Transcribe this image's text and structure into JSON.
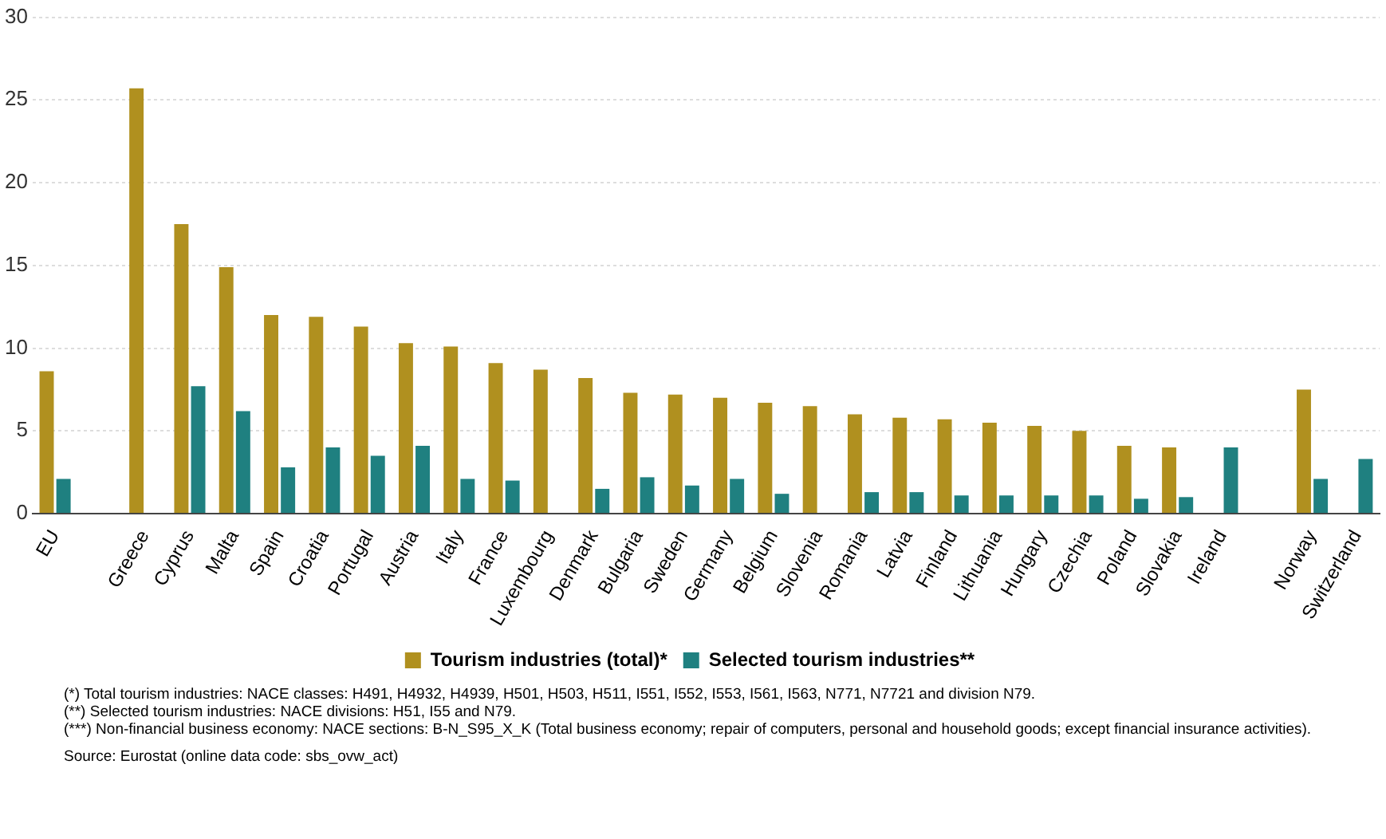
{
  "chart_data": {
    "type": "bar",
    "categories": [
      "EU",
      null,
      "Greece",
      "Cyprus",
      "Malta",
      "Spain",
      "Croatia",
      "Portugal",
      "Austria",
      "Italy",
      "France",
      "Luxembourg",
      "Denmark",
      "Bulgaria",
      "Sweden",
      "Germany",
      "Belgium",
      "Slovenia",
      "Romania",
      "Latvia",
      "Finland",
      "Lithuania",
      "Hungary",
      "Czechia",
      "Poland",
      "Slovakia",
      "Ireland",
      null,
      "Norway",
      "Switzerland"
    ],
    "series": [
      {
        "name": "Tourism industries (total)*",
        "color": "#b0901f",
        "values": [
          8.6,
          null,
          25.7,
          17.5,
          14.9,
          12.0,
          11.9,
          11.3,
          10.3,
          10.1,
          9.1,
          8.7,
          8.2,
          7.3,
          7.2,
          7.0,
          6.7,
          6.5,
          6.0,
          5.8,
          5.7,
          5.5,
          5.3,
          5.0,
          4.1,
          4.0,
          null,
          null,
          7.5,
          null
        ]
      },
      {
        "name": "Selected tourism industries**",
        "color": "#1f8080",
        "values": [
          2.1,
          null,
          null,
          7.7,
          6.2,
          2.8,
          4.0,
          3.5,
          4.1,
          2.1,
          2.0,
          null,
          1.5,
          2.2,
          1.7,
          2.1,
          1.2,
          null,
          1.3,
          1.3,
          1.1,
          1.1,
          1.1,
          1.1,
          0.9,
          1.0,
          4.0,
          null,
          2.1,
          3.3
        ]
      }
    ],
    "ylim": [
      0,
      30
    ],
    "yticks": [
      0,
      5,
      10,
      15,
      20,
      25,
      30
    ],
    "grid": "y",
    "legend": "bottom",
    "annotations": [
      "(*) Total tourism industries: NACE classes: H491, H4932, H4939, H501, H503, H511, I551, I552, I553, I561, I563, N771, N7721 and division N79.",
      "(**) Selected tourism industries: NACE divisions: H51, I55 and N79.",
      "(***) Non-financial business economy: NACE sections: B-N_S95_X_K (Total business economy; repair of computers, personal and household goods; except financial insurance activities).",
      "Source: Eurostat (online data code: sbs_ovw_act)"
    ]
  }
}
